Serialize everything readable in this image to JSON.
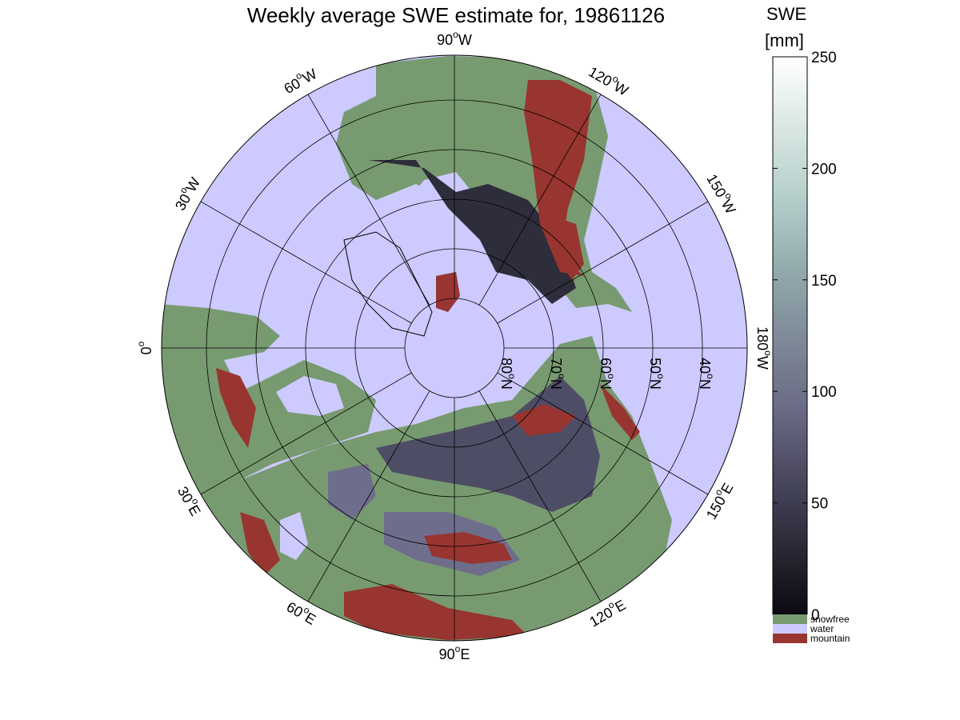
{
  "title": "Weekly average SWE estimate for, 19861126",
  "colorbar": {
    "label_line1": "SWE",
    "label_line2": "[mm]",
    "ticks": [
      "0",
      "50",
      "100",
      "150",
      "200",
      "250"
    ],
    "min": 0,
    "max": 250,
    "gradient_colors": [
      "#0b0a10",
      "#2a2936",
      "#4a4960",
      "#6b6b85",
      "#7f8b99",
      "#93aaad",
      "#b6cfcb",
      "#dbe8e5",
      "#ffffff"
    ]
  },
  "categories": [
    {
      "label": "snowfree",
      "color": "#789a70"
    },
    {
      "label": "water",
      "color": "#cccaff"
    },
    {
      "label": "mountain",
      "color": "#983530"
    }
  ],
  "longitude_labels": [
    "90°W",
    "120°W",
    "150°W",
    "180°W",
    "150°E",
    "120°E",
    "90°E",
    "60°E",
    "30°E",
    "0°",
    "30°W",
    "60°W"
  ],
  "latitude_labels": [
    "80°N",
    "70°N",
    "60°N",
    "50°N",
    "40°N"
  ],
  "colors": {
    "ocean": "#cccaff",
    "land": "#789a70",
    "mountain": "#983530",
    "snow_dark": "#2e2d3b",
    "snow_mid": "#4e4d66",
    "snow_light": "#6e6e8c"
  }
}
